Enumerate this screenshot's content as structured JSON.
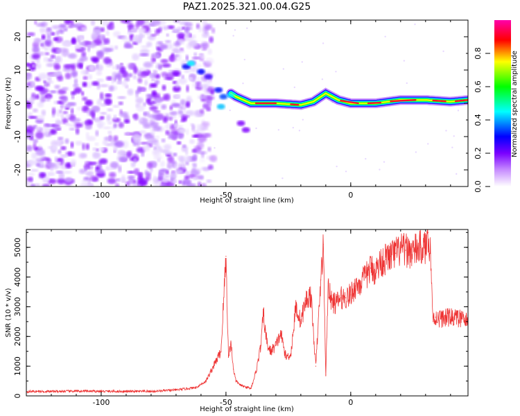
{
  "title": "PAZ1.2025.321.00.04.G25",
  "chart_data": [
    {
      "type": "heatmap",
      "name": "spectrogram",
      "xlabel": "Height of straight line (km)",
      "ylabel": "Frequency (Hz)",
      "xlim": [
        -130,
        47
      ],
      "ylim": [
        -25,
        25
      ],
      "x_ticks": [
        -100,
        -50,
        0
      ],
      "y_ticks": [
        -20,
        -10,
        0,
        10,
        20
      ],
      "ridge": {
        "description_points": [
          [
            -60,
            10
          ],
          [
            -52,
            5
          ],
          [
            -46,
            2
          ],
          [
            -40,
            0
          ],
          [
            -30,
            0
          ],
          [
            -20,
            -0.5
          ],
          [
            -15,
            0.5
          ],
          [
            -10,
            3
          ],
          [
            -5,
            1
          ],
          [
            0,
            0
          ],
          [
            10,
            0
          ],
          [
            20,
            1
          ],
          [
            30,
            1
          ],
          [
            40,
            0.5
          ],
          [
            47,
            1
          ]
        ]
      },
      "colorbar": {
        "label": "Normalized spectral amplitude",
        "ticks": [
          "0.0",
          "0.2",
          "0.4",
          "0.6",
          "0.8"
        ],
        "range": [
          0.0,
          1.0
        ],
        "colors": [
          "#ffffff",
          "#9b30ff",
          "#0000ff",
          "#00ffff",
          "#00ff00",
          "#ffff00",
          "#ff0000",
          "#ff00aa"
        ]
      }
    },
    {
      "type": "line",
      "name": "snr",
      "xlabel": "Height of straight line (km)",
      "ylabel": "SNR (10 * v/v)",
      "xlim": [
        -130,
        47
      ],
      "ylim": [
        0,
        5600
      ],
      "x_ticks": [
        -100,
        -50,
        0
      ],
      "y_ticks": [
        0,
        1000,
        2000,
        3000,
        4000,
        5000
      ],
      "color": "#ee3333",
      "x": [
        -130,
        -120,
        -110,
        -100,
        -90,
        -80,
        -70,
        -62,
        -58,
        -55,
        -52,
        -50,
        -49,
        -48,
        -47,
        -46,
        -44,
        -42,
        -40,
        -38,
        -36,
        -35,
        -34,
        -33,
        -32,
        -30,
        -28,
        -26,
        -24,
        -22,
        -20,
        -18,
        -16,
        -14,
        -12,
        -11,
        -10,
        -9,
        -8,
        -6,
        -4,
        -2,
        0,
        2,
        4,
        6,
        8,
        10,
        12,
        14,
        16,
        18,
        20,
        22,
        24,
        26,
        28,
        30,
        31,
        32,
        33,
        34,
        36,
        40,
        44,
        47
      ],
      "y": [
        150,
        150,
        160,
        155,
        150,
        150,
        200,
        280,
        500,
        1000,
        1500,
        4700,
        1300,
        1800,
        900,
        500,
        350,
        300,
        250,
        800,
        1700,
        2800,
        2000,
        1600,
        1500,
        1700,
        2100,
        1300,
        1400,
        3000,
        2500,
        3200,
        3400,
        1000,
        3900,
        5100,
        700,
        3800,
        3200,
        3100,
        3300,
        3300,
        3400,
        3700,
        3800,
        4000,
        4300,
        4200,
        4500,
        4600,
        4700,
        4800,
        4900,
        4900,
        4850,
        4900,
        5000,
        4950,
        5500,
        4800,
        2500,
        2650,
        2600,
        2650,
        2600,
        2500
      ]
    }
  ]
}
